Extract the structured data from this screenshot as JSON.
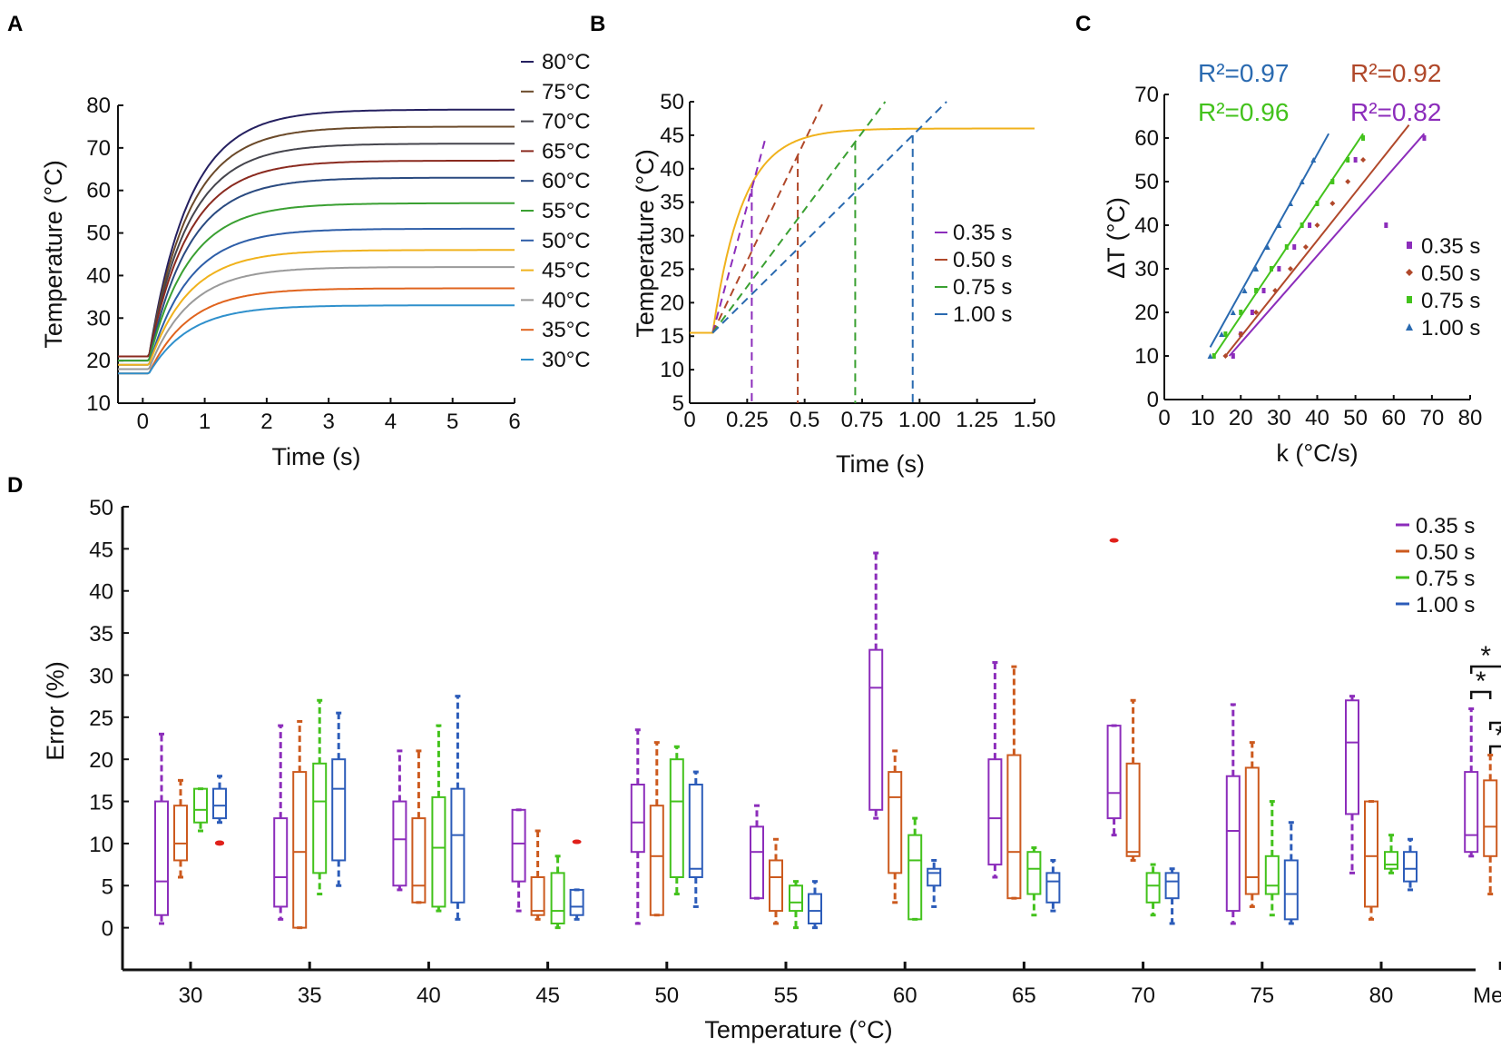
{
  "panels": {
    "A": "A",
    "B": "B",
    "C": "C",
    "D": "D"
  },
  "colors": {
    "purple": "#8c2dbb",
    "orange": "#cc5a1e",
    "green": "#43c21c",
    "blue": "#2c5cb9",
    "red": "#e0201a",
    "yellow": "#f0b21c",
    "black": "#111111"
  },
  "chart_data": [
    {
      "id": "A",
      "type": "line",
      "xlabel": "Time (s)",
      "ylabel": "Temperature (°C)",
      "xlim": [
        -0.4,
        6
      ],
      "ylim": [
        10,
        80
      ],
      "xticks": [
        0,
        1,
        2,
        3,
        4,
        5,
        6
      ],
      "yticks": [
        10,
        20,
        30,
        40,
        50,
        60,
        70,
        80
      ],
      "series": [
        {
          "name": "80°C",
          "start": 21,
          "final": 79,
          "color": "#252060"
        },
        {
          "name": "75°C",
          "start": 21,
          "final": 75,
          "color": "#6b4a2a"
        },
        {
          "name": "70°C",
          "start": 21,
          "final": 71,
          "color": "#45454d"
        },
        {
          "name": "65°C",
          "start": 21,
          "final": 67,
          "color": "#8a2a1f"
        },
        {
          "name": "60°C",
          "start": 20,
          "final": 63,
          "color": "#2a4a80"
        },
        {
          "name": "55°C",
          "start": 20,
          "final": 57,
          "color": "#3aa032"
        },
        {
          "name": "50°C",
          "start": 19,
          "final": 51,
          "color": "#2e5ea8"
        },
        {
          "name": "45°C",
          "start": 19,
          "final": 46,
          "color": "#f0b21c"
        },
        {
          "name": "40°C",
          "start": 18,
          "final": 42,
          "color": "#9a9a9a"
        },
        {
          "name": "35°C",
          "start": 17,
          "final": 37,
          "color": "#e0641e"
        },
        {
          "name": "30°C",
          "start": 17,
          "final": 33,
          "color": "#2f90cc"
        }
      ]
    },
    {
      "id": "B",
      "type": "line",
      "xlabel": "Time (s)",
      "ylabel": "Temperature (°C)",
      "xlim": [
        0,
        1.5
      ],
      "ylim": [
        5,
        50
      ],
      "xticks": [
        "0",
        "0.25",
        "0.5",
        "0.75",
        "1.00",
        "1.25",
        "1.50"
      ],
      "xtickvals": [
        0,
        0.25,
        0.5,
        0.75,
        1.0,
        1.25,
        1.5
      ],
      "yticks": [
        5,
        10,
        15,
        20,
        25,
        30,
        35,
        40,
        45,
        50
      ],
      "curve": {
        "start_value": 15.5,
        "onset": 0.1,
        "final": 46,
        "color": "#f0b21c"
      },
      "series": [
        {
          "name": "0.35 s",
          "t": 0.27,
          "y": 37,
          "color": "#8c2dbb"
        },
        {
          "name": "0.50 s",
          "t": 0.47,
          "y": 42,
          "color": "#b0482a"
        },
        {
          "name": "0.75 s",
          "t": 0.72,
          "y": 44,
          "color": "#3aa032"
        },
        {
          "name": "1.00 s",
          "t": 0.97,
          "y": 45,
          "color": "#2a6ab0"
        }
      ]
    },
    {
      "id": "C",
      "type": "scatter",
      "xlabel": "k (°C/s)",
      "ylabel": "ΔT (°C)",
      "xlim": [
        0,
        80
      ],
      "ylim": [
        0,
        70
      ],
      "xticks": [
        0,
        10,
        20,
        30,
        40,
        50,
        60,
        70,
        80
      ],
      "yticks": [
        0,
        10,
        20,
        30,
        40,
        50,
        60,
        70
      ],
      "r2": [
        {
          "text": "R²=0.97",
          "color": "#2a6ab0"
        },
        {
          "text": "R²=0.92",
          "color": "#b0482a"
        },
        {
          "text": "R²=0.96",
          "color": "#43c21c"
        },
        {
          "text": "R²=0.82",
          "color": "#8c2dbb"
        }
      ],
      "series": [
        {
          "name": "0.35 s",
          "marker": "square",
          "color": "#8c2dbb",
          "line": [
            [
              17,
              10
            ],
            [
              68,
              61
            ]
          ],
          "points": [
            [
              18,
              10
            ],
            [
              20,
              15
            ],
            [
              23,
              20
            ],
            [
              26,
              25
            ],
            [
              30,
              30
            ],
            [
              34,
              35
            ],
            [
              38,
              40
            ],
            [
              58,
              40
            ],
            [
              50,
              55
            ],
            [
              68,
              60
            ]
          ]
        },
        {
          "name": "0.50 s",
          "marker": "diamond",
          "color": "#b0482a",
          "line": [
            [
              16,
              10
            ],
            [
              64,
              63
            ]
          ],
          "points": [
            [
              16,
              10
            ],
            [
              20,
              15
            ],
            [
              24,
              20
            ],
            [
              29,
              25
            ],
            [
              33,
              30
            ],
            [
              37,
              35
            ],
            [
              40,
              40
            ],
            [
              44,
              45
            ],
            [
              48,
              50
            ],
            [
              52,
              55
            ]
          ]
        },
        {
          "name": "0.75 s",
          "marker": "square",
          "color": "#43c21c",
          "line": [
            [
              13,
              10
            ],
            [
              52,
              61
            ]
          ],
          "points": [
            [
              13,
              10
            ],
            [
              16,
              15
            ],
            [
              20,
              20
            ],
            [
              24,
              25
            ],
            [
              28,
              30
            ],
            [
              32,
              35
            ],
            [
              36,
              40
            ],
            [
              40,
              45
            ],
            [
              44,
              50
            ],
            [
              48,
              55
            ],
            [
              52,
              60
            ]
          ]
        },
        {
          "name": "1.00 s",
          "marker": "triangle",
          "color": "#2a6ab0",
          "line": [
            [
              12,
              12
            ],
            [
              43,
              61
            ]
          ],
          "points": [
            [
              12,
              10
            ],
            [
              15,
              15
            ],
            [
              18,
              20
            ],
            [
              21,
              25
            ],
            [
              24,
              30
            ],
            [
              27,
              35
            ],
            [
              30,
              40
            ],
            [
              33,
              45
            ],
            [
              36,
              50
            ],
            [
              39,
              55
            ]
          ]
        }
      ]
    },
    {
      "id": "D",
      "type": "box",
      "xlabel": "Temperature (°C)",
      "ylabel": "Error (%)",
      "ylim": [
        0,
        50
      ],
      "yticks": [
        0,
        5,
        10,
        15,
        20,
        25,
        30,
        35,
        40,
        45,
        50
      ],
      "categories": [
        "30",
        "35",
        "40",
        "45",
        "50",
        "55",
        "60",
        "65",
        "70",
        "75",
        "80",
        "Mean"
      ],
      "series_names": [
        "0.35 s",
        "0.50 s",
        "0.75 s",
        "1.00 s"
      ],
      "series_colors": [
        "#8c2dbb",
        "#cc5a1e",
        "#43c21c",
        "#2c5cb9"
      ],
      "boxes": [
        [
          [
            0.5,
            1.5,
            5.5,
            15,
            23
          ],
          [
            6,
            8,
            10,
            14.5,
            17.5
          ],
          [
            11.5,
            12.5,
            14,
            16.5,
            16.5
          ],
          [
            12.5,
            13,
            14.5,
            16.5,
            18
          ]
        ],
        [
          [
            1,
            2.5,
            6,
            13,
            24
          ],
          [
            0,
            0,
            9,
            18.5,
            24.5
          ],
          [
            4,
            6.5,
            15,
            19.5,
            27
          ],
          [
            5,
            8,
            16.5,
            20,
            25.5
          ]
        ],
        [
          [
            4.5,
            5,
            10.5,
            15,
            21
          ],
          [
            3,
            3,
            5,
            13,
            21
          ],
          [
            2,
            2.5,
            9.5,
            15.5,
            24
          ],
          [
            1,
            3,
            11,
            16.5,
            27.5
          ]
        ],
        [
          [
            2,
            5.5,
            10,
            14,
            14
          ],
          [
            1,
            1.5,
            2,
            6,
            11.5
          ],
          [
            0,
            0.5,
            2,
            6.5,
            8.5
          ],
          [
            1,
            1.5,
            2.5,
            4.5,
            4.5
          ]
        ],
        [
          [
            0.5,
            9,
            12.5,
            17,
            23.5
          ],
          [
            1.5,
            1.5,
            8.5,
            14.5,
            22
          ],
          [
            4,
            6,
            15,
            20,
            21.5
          ],
          [
            2.5,
            6,
            7,
            17,
            18.5
          ]
        ],
        [
          [
            3.5,
            3.5,
            9,
            12,
            14.5
          ],
          [
            0.5,
            2,
            6,
            8,
            10.5
          ],
          [
            0,
            2,
            3,
            5,
            5.5
          ],
          [
            0,
            0.5,
            2,
            4,
            5.5
          ]
        ],
        [
          [
            13,
            14,
            28.5,
            33,
            44.5
          ],
          [
            3,
            6.5,
            15.5,
            18.5,
            21
          ],
          [
            1,
            1,
            8,
            11,
            13
          ],
          [
            2.5,
            5,
            6.5,
            7,
            8
          ]
        ],
        [
          [
            6,
            7.5,
            13,
            20,
            31.5
          ],
          [
            3.5,
            3.5,
            9,
            20.5,
            31
          ],
          [
            1.5,
            4,
            7,
            9,
            9.5
          ],
          [
            2,
            3,
            5.5,
            6.5,
            8
          ]
        ],
        [
          [
            11,
            13,
            16,
            24,
            24
          ],
          [
            8,
            8.5,
            9,
            19.5,
            27
          ],
          [
            1.5,
            3,
            5,
            6.5,
            7.5
          ],
          [
            0.5,
            3.5,
            5.5,
            6.5,
            7
          ]
        ],
        [
          [
            0.5,
            2,
            11.5,
            18,
            26.5
          ],
          [
            2.5,
            4,
            6,
            19,
            22
          ],
          [
            1.5,
            4,
            5,
            8.5,
            15
          ],
          [
            0.5,
            1,
            4,
            8,
            12.5
          ]
        ],
        [
          [
            6.5,
            13.5,
            22,
            27,
            27.5
          ],
          [
            1,
            2.5,
            8.5,
            15,
            15
          ],
          [
            6.5,
            7,
            7.5,
            9,
            11
          ],
          [
            4.5,
            5.5,
            7,
            9,
            10.5
          ]
        ],
        [
          [
            8.5,
            9,
            11,
            18.5,
            26
          ],
          [
            4,
            8.5,
            12,
            17.5,
            20.5
          ],
          [
            2,
            5.5,
            7,
            12.5,
            14.5
          ],
          [
            2,
            5,
            6,
            11,
            15
          ]
        ]
      ],
      "outliers": [
        {
          "category": 0,
          "series": 3,
          "value": 10
        },
        {
          "category": 0,
          "series": 3,
          "value": 10.1
        },
        {
          "category": 3,
          "series": 3,
          "value": 10.2
        },
        {
          "category": 8,
          "series": 0,
          "value": 46
        }
      ],
      "significance": [
        {
          "from": 0,
          "to": 3,
          "label": "*"
        },
        {
          "from": 0,
          "to": 1,
          "label": "*"
        },
        {
          "from": 1,
          "to": 3,
          "label": "*"
        },
        {
          "from": 1,
          "to": 2,
          "label": "*"
        }
      ]
    }
  ]
}
